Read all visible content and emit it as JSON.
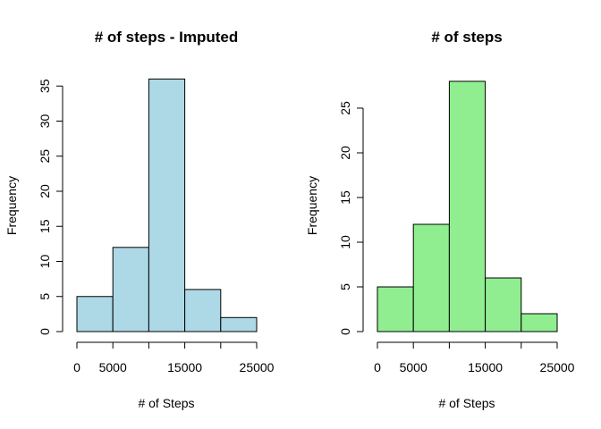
{
  "chart_data": [
    {
      "type": "bar",
      "title": "# of steps - Imputed",
      "xlabel": "# of Steps",
      "ylabel": "Frequency",
      "bin_edges": [
        0,
        5000,
        10000,
        15000,
        20000,
        25000
      ],
      "values": [
        5,
        12,
        36,
        6,
        2
      ],
      "xlim": [
        0,
        25000
      ],
      "ylim": [
        0,
        35
      ],
      "x_ticks": [
        0,
        5000,
        10000,
        15000,
        20000,
        25000
      ],
      "x_tick_labels": [
        "0",
        "5000",
        "",
        "15000",
        "",
        "25000"
      ],
      "y_ticks": [
        0,
        5,
        10,
        15,
        20,
        25,
        30,
        35
      ],
      "y_tick_labels": [
        "0",
        "5",
        "10",
        "15",
        "20",
        "25",
        "30",
        "35"
      ],
      "color": "#add8e6",
      "grid": false
    },
    {
      "type": "bar",
      "title": "# of steps",
      "xlabel": "# of Steps",
      "ylabel": "Frequency",
      "bin_edges": [
        0,
        5000,
        10000,
        15000,
        20000,
        25000
      ],
      "values": [
        5,
        12,
        28,
        6,
        2
      ],
      "xlim": [
        0,
        25000
      ],
      "ylim": [
        0,
        25
      ],
      "x_ticks": [
        0,
        5000,
        10000,
        15000,
        20000,
        25000
      ],
      "x_tick_labels": [
        "0",
        "5000",
        "",
        "15000",
        "",
        "25000"
      ],
      "y_ticks": [
        0,
        5,
        10,
        15,
        20,
        25
      ],
      "y_tick_labels": [
        "0",
        "5",
        "10",
        "15",
        "20",
        "25"
      ],
      "color": "#90ee90",
      "grid": false
    }
  ]
}
